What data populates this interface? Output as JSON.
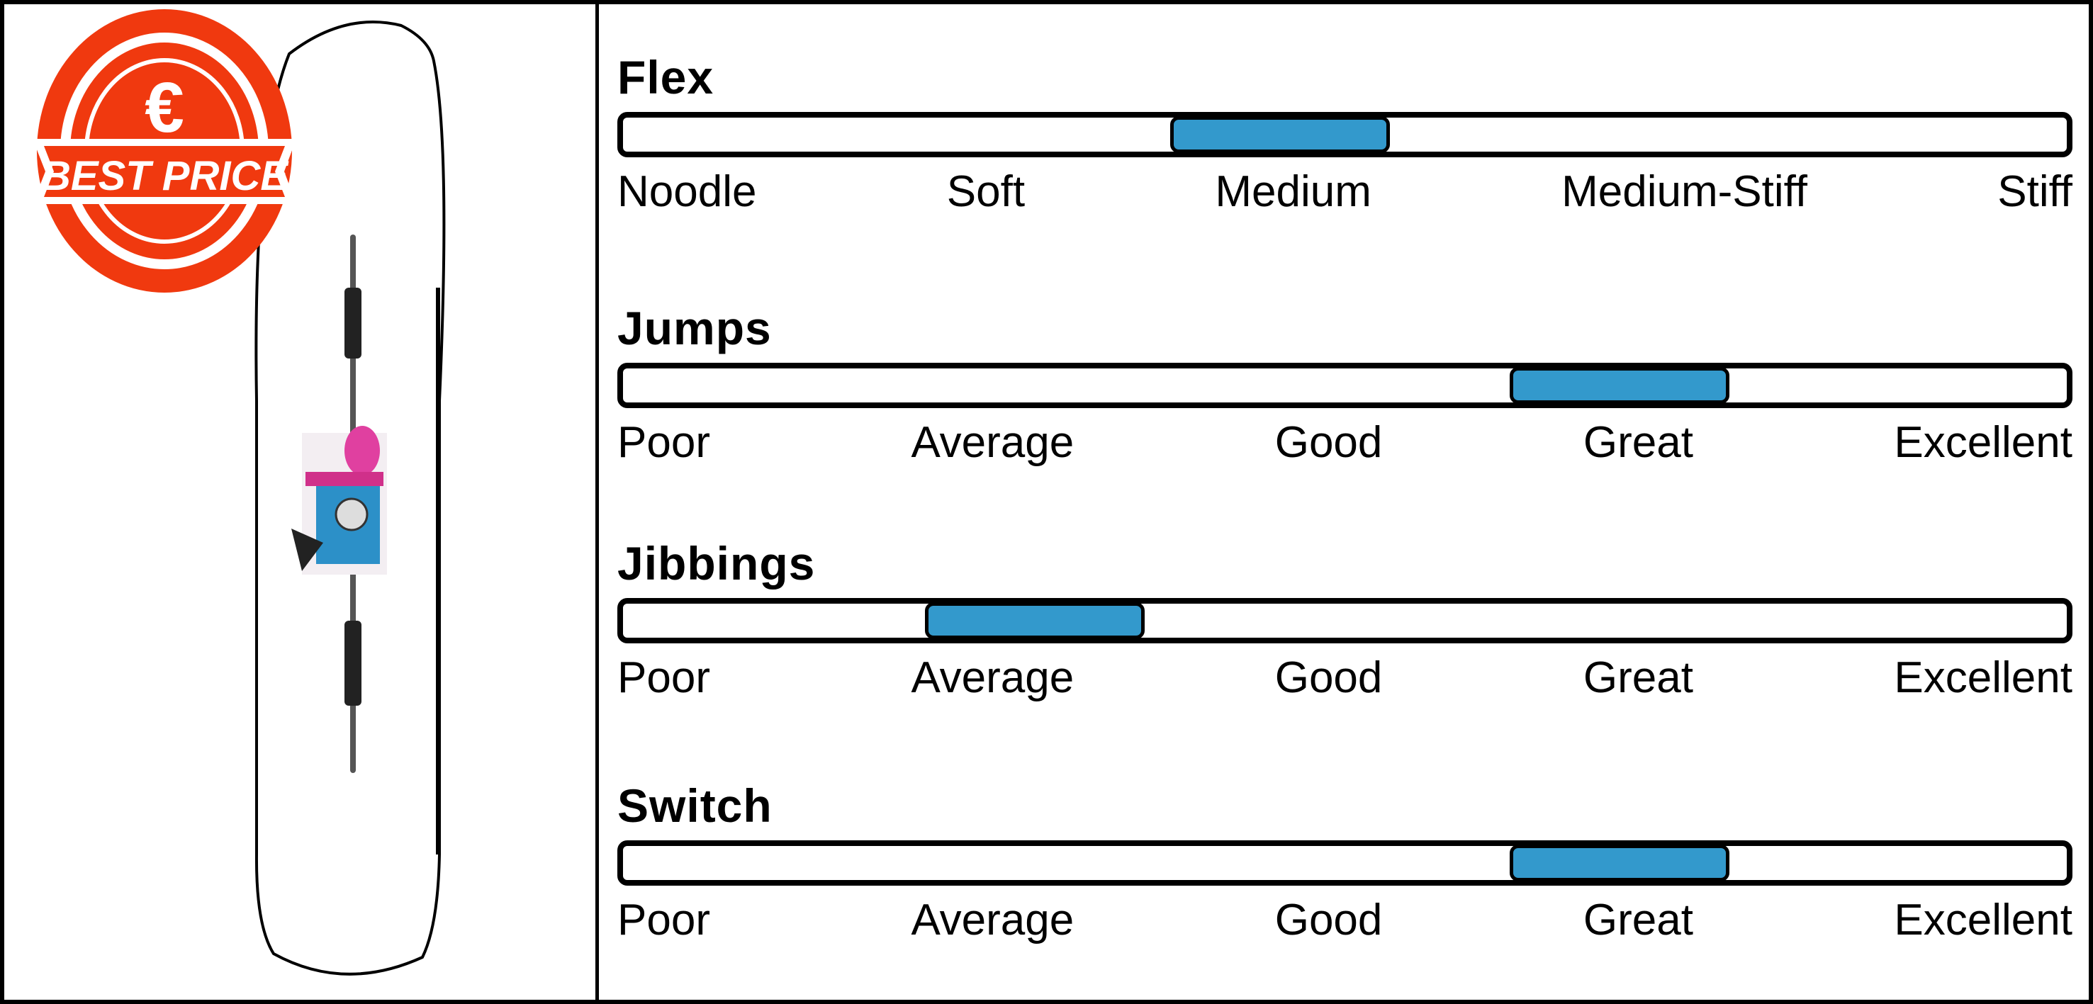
{
  "badge": {
    "text": "BEST PRICE",
    "currency_icon": "euro-icon",
    "color": "#f0390f"
  },
  "board": {
    "image": "snowboard-image"
  },
  "fill_color": "#3399cc",
  "ratings": [
    {
      "title": "Flex",
      "labels": [
        "Noodle",
        "Soft",
        "Medium",
        "Medium-Stiff",
        "Stiff"
      ],
      "level": 2,
      "selected": "Medium"
    },
    {
      "title": "Jumps",
      "labels": [
        "Poor",
        "Average",
        "Good",
        "Great",
        "Excellent"
      ],
      "level": 3,
      "selected": "Great"
    },
    {
      "title": "Jibbings",
      "labels": [
        "Poor",
        "Average",
        "Good",
        "Great",
        "Excellent"
      ],
      "level": 1,
      "selected": "Average"
    },
    {
      "title": "Switch",
      "labels": [
        "Poor",
        "Average",
        "Good",
        "Great",
        "Excellent"
      ],
      "level": 3,
      "selected": "Great"
    }
  ]
}
